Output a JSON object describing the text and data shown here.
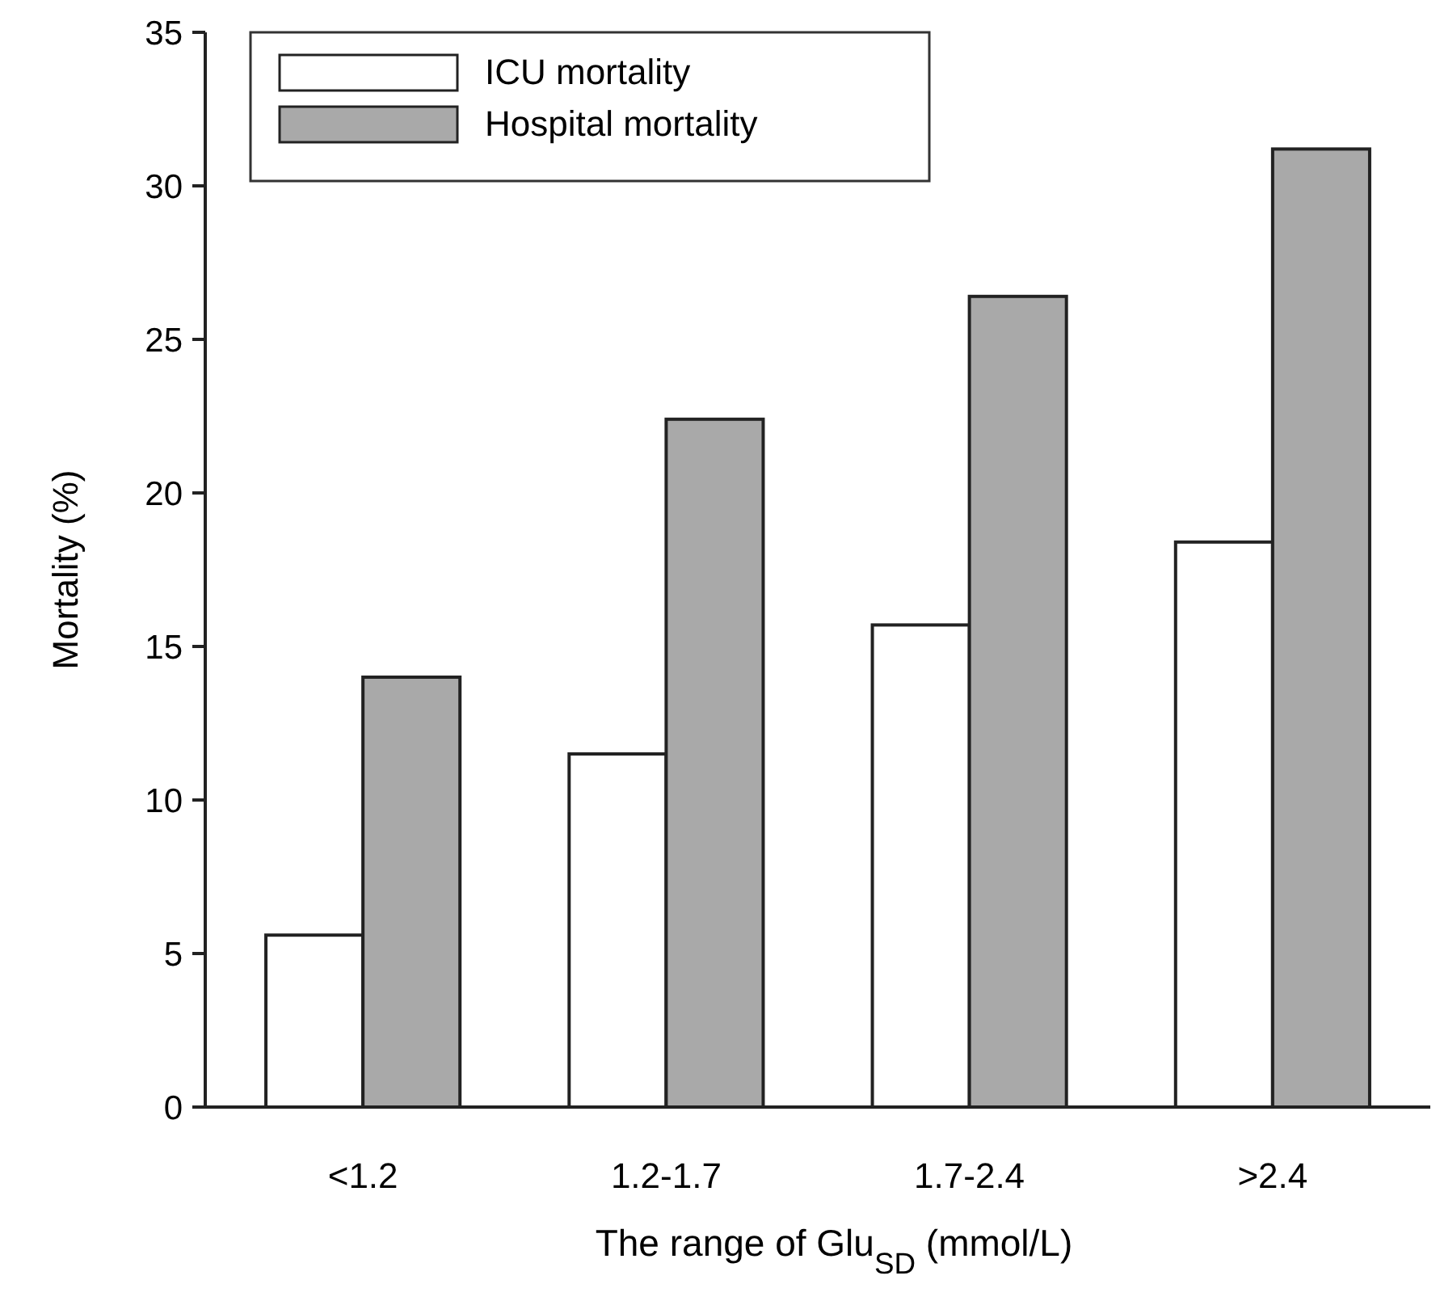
{
  "chart_data": {
    "type": "bar",
    "xlabel": "The range of Glu$_{SD}$ (mmol/L)",
    "ylabel": "Mortality (%)",
    "categories": [
      "<1.2",
      "1.2-1.7",
      "1.7-2.4",
      ">2.4"
    ],
    "series": [
      {
        "name": "ICU mortality",
        "color": "#ffffff",
        "values": [
          5.6,
          11.5,
          15.7,
          18.4
        ]
      },
      {
        "name": "Hospital mortality",
        "color": "#a9a9a9",
        "values": [
          14.0,
          22.4,
          26.4,
          31.2
        ]
      }
    ],
    "ylim": [
      0,
      35
    ],
    "yticks": [
      0,
      5,
      10,
      15,
      20,
      25,
      30,
      35
    ],
    "grid": false,
    "legend": "top left"
  }
}
